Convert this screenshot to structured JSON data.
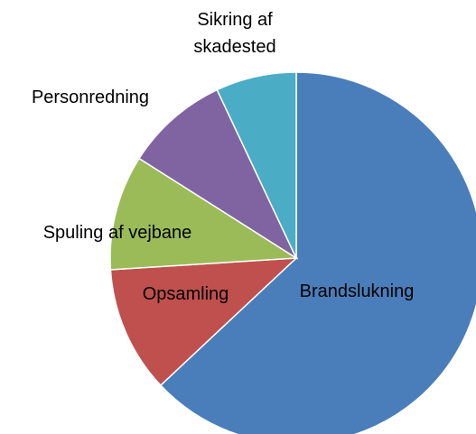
{
  "chart_data": {
    "type": "pie",
    "categories": [
      "Brandslukning",
      "Opsamling",
      "Spuling af vejbane",
      "Personredning",
      "Sikring af skadested"
    ],
    "values": [
      63,
      11,
      10,
      9,
      7
    ],
    "colors": [
      "#4a7ebb",
      "#c0504d",
      "#9bbb59",
      "#8064a2",
      "#4bacc6"
    ]
  }
}
